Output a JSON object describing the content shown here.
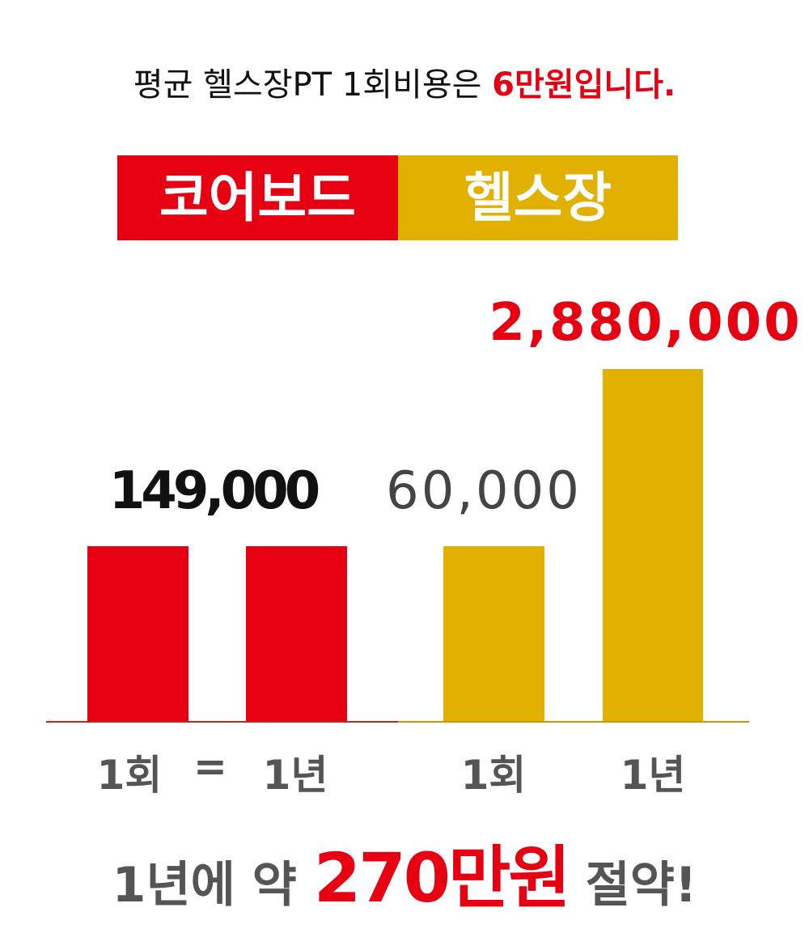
{
  "headline": {
    "prefix": "평균 헬스장PT 1회비용은",
    "highlight": "6만원입니다."
  },
  "tabs": [
    "코어보드",
    "헬스장"
  ],
  "value_labels": {
    "coreboard": "149,000",
    "gym_session": "60,000",
    "gym_year": "2,880,000"
  },
  "axis_labels": [
    "1회",
    "=",
    "1년",
    "1회",
    "1년"
  ],
  "footer": {
    "prefix": "1년에 약",
    "highlight": "270만원",
    "suffix": "절약!"
  }
}
